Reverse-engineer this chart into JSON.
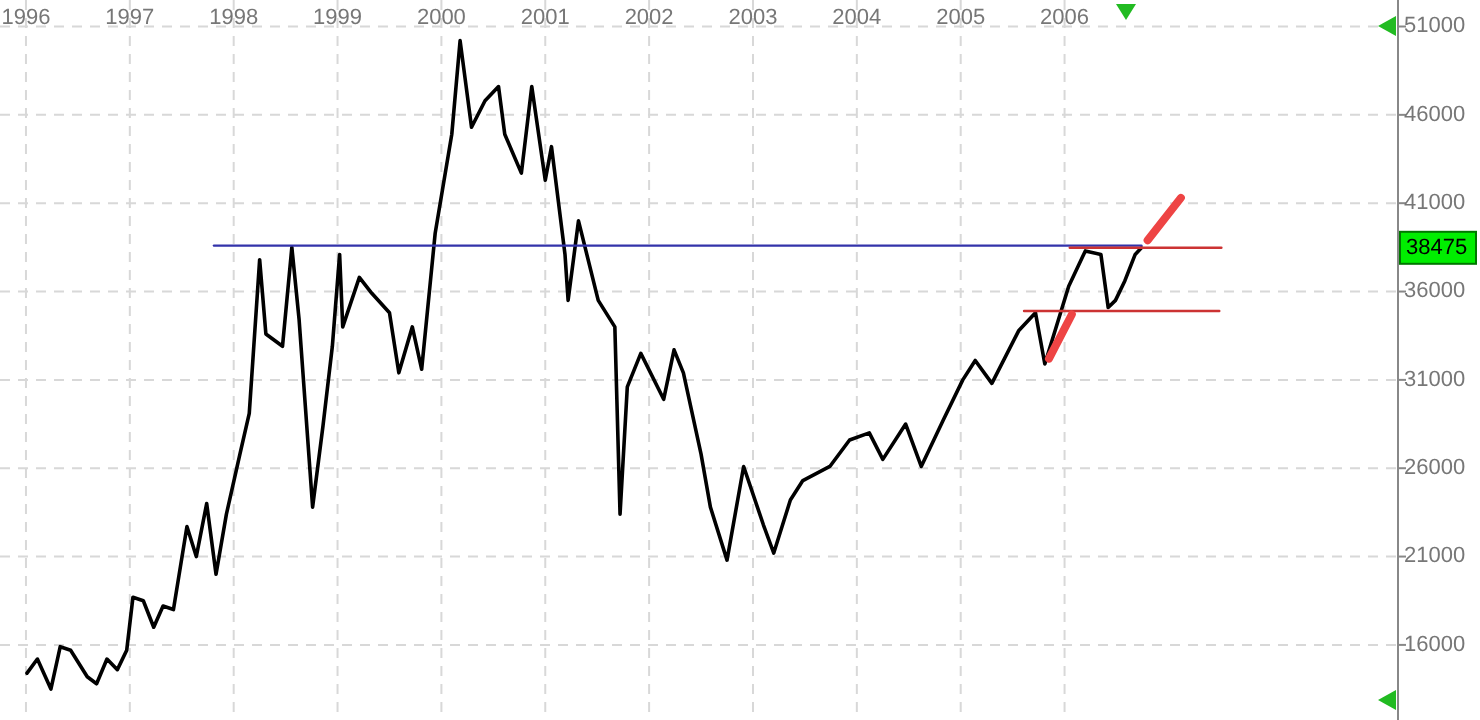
{
  "chart_data": {
    "type": "line",
    "xlim": [
      1995.75,
      2010
    ],
    "xticks": [
      1996,
      1997,
      1998,
      1999,
      2000,
      2001,
      2002,
      2003,
      2004,
      2005,
      2006
    ],
    "ylim": [
      11750,
      52500
    ],
    "yticks": [
      16000,
      21000,
      26000,
      31000,
      36000,
      41000,
      46000,
      51000
    ],
    "grid": true,
    "series": [
      {
        "color": "#000000",
        "x": [
          1996.01,
          1996.11,
          1996.24,
          1996.33,
          1996.43,
          1996.59,
          1996.68,
          1996.78,
          1996.88,
          1996.97,
          1997.03,
          1997.13,
          1997.23,
          1997.32,
          1997.42,
          1997.55,
          1997.64,
          1997.74,
          1997.83,
          1997.93,
          1998.06,
          1998.15,
          1998.25,
          1998.31,
          1998.47,
          1998.56,
          1998.63,
          1998.76,
          1998.86,
          1998.95,
          1999.02,
          1999.05,
          1999.21,
          1999.33,
          1999.5,
          1999.59,
          1999.72,
          1999.81,
          1999.94,
          2000.1,
          2000.18,
          2000.29,
          2000.42,
          2000.55,
          2000.61,
          2000.77,
          2000.87,
          2001.0,
          2001.06,
          2001.19,
          2001.22,
          2001.32,
          2001.51,
          2001.67,
          2001.72,
          2001.79,
          2001.92,
          2002.14,
          2002.24,
          2002.33,
          2002.5,
          2002.59,
          2002.75,
          2002.91,
          2003.1,
          2003.2,
          2003.36,
          2003.48,
          2003.74,
          2003.93,
          2004.12,
          2004.25,
          2004.47,
          2004.62,
          2004.83,
          2005.02,
          2005.14,
          2005.3,
          2005.56,
          2005.72,
          2005.81,
          2006.04,
          2006.2,
          2006.35,
          2006.42,
          2006.49,
          2006.58,
          2006.68,
          2006.74
        ],
        "values": [
          14400,
          15200,
          13500,
          15900,
          15700,
          14200,
          13800,
          15200,
          14600,
          15700,
          18700,
          18500,
          17000,
          18200,
          18000,
          22700,
          21000,
          24000,
          20000,
          23400,
          26800,
          29100,
          37800,
          33600,
          32900,
          38500,
          34400,
          23800,
          28400,
          32900,
          38100,
          34000,
          36800,
          35900,
          34800,
          31400,
          34000,
          31600,
          39300,
          44900,
          50200,
          45300,
          46800,
          47600,
          44900,
          42700,
          47600,
          42300,
          44200,
          38100,
          35500,
          40000,
          35500,
          34000,
          23400,
          30600,
          32500,
          29900,
          32700,
          31400,
          26800,
          23800,
          20800,
          26100,
          22800,
          21200,
          24200,
          25300,
          26100,
          27600,
          28000,
          26500,
          28500,
          26100,
          28700,
          31000,
          32100,
          30800,
          33800,
          34800,
          31900,
          36300,
          38300,
          38100,
          35100,
          35500,
          36600,
          38100,
          38475
        ]
      },
      {
        "color": "#3333aa",
        "x": [
          1997.81,
          2006.74
        ],
        "values": [
          38600,
          38600
        ]
      },
      {
        "color": "#cc3333",
        "x": [
          2006.05,
          2007.51
        ],
        "values": [
          38475,
          38475
        ]
      },
      {
        "color": "#cc3333",
        "x": [
          2005.61,
          2007.49
        ],
        "values": [
          34900,
          34900
        ]
      },
      {
        "color": "#ee4444",
        "x": [
          2006.8,
          2007.12
        ],
        "values": [
          38900,
          41300
        ]
      },
      {
        "color": "#ee4444",
        "x": [
          2005.85,
          2006.07
        ],
        "values": [
          32200,
          34700
        ]
      }
    ],
    "annotations": [
      {
        "text": "38475",
        "y": 38475
      }
    ]
  }
}
